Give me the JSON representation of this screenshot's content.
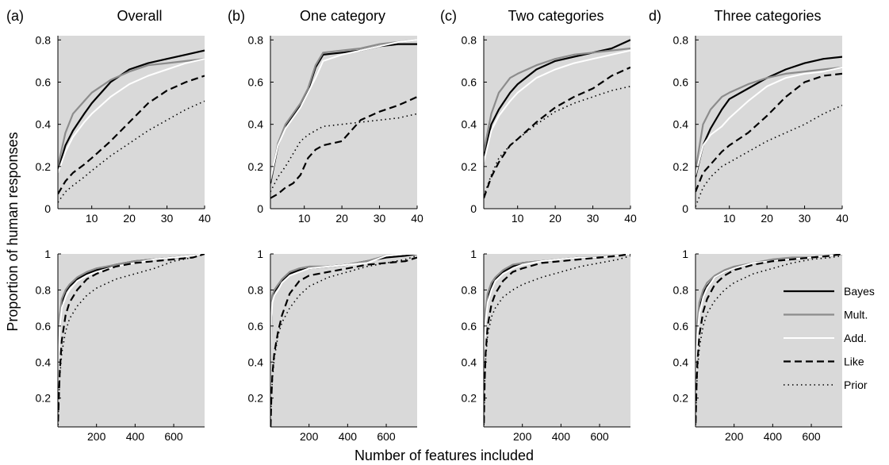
{
  "figure": {
    "ylabel": "Proportion of human responses",
    "xlabel": "Number of features included"
  },
  "panels": [
    {
      "letter": "(a)",
      "title": "Overall"
    },
    {
      "letter": "(b)",
      "title": "One category"
    },
    {
      "letter": "(c)",
      "title": "Two categories"
    },
    {
      "letter": "d)",
      "title": "Three categories"
    }
  ],
  "legend": [
    {
      "name": "Bayes",
      "color": "#000000",
      "dash": "solid",
      "width": 2.2
    },
    {
      "name": "Mult.",
      "color": "#8c8c8c",
      "dash": "solid",
      "width": 2.2
    },
    {
      "name": "Add.",
      "color": "#ffffff",
      "dash": "solid",
      "width": 2
    },
    {
      "name": "Like",
      "color": "#000000",
      "dash": "dashed",
      "width": 2.2
    },
    {
      "name": "Prior",
      "color": "#000000",
      "dash": "dotted",
      "width": 1.6
    }
  ],
  "chart_data": [
    {
      "type": "line",
      "panel": "(a) Overall",
      "row": "top",
      "xlim": [
        1,
        40
      ],
      "ylim": [
        0,
        0.82
      ],
      "xticks": [
        10,
        20,
        30,
        40
      ],
      "yticks": [
        0,
        0.2,
        0.4,
        0.6,
        0.8
      ],
      "xticklabels": [
        "10",
        "20",
        "30",
        "40"
      ],
      "yticklabels": [
        "0",
        "0.2",
        "0.4",
        "0.6",
        "0.8"
      ],
      "x": [
        1,
        3,
        5,
        8,
        10,
        15,
        20,
        25,
        30,
        35,
        40
      ],
      "series": [
        {
          "name": "Bayes",
          "values": [
            0.18,
            0.3,
            0.37,
            0.45,
            0.5,
            0.6,
            0.66,
            0.69,
            0.71,
            0.73,
            0.75
          ]
        },
        {
          "name": "Mult.",
          "values": [
            0.2,
            0.36,
            0.45,
            0.51,
            0.55,
            0.61,
            0.65,
            0.68,
            0.69,
            0.7,
            0.71
          ]
        },
        {
          "name": "Add.",
          "values": [
            0.17,
            0.27,
            0.34,
            0.41,
            0.45,
            0.53,
            0.59,
            0.63,
            0.66,
            0.69,
            0.71
          ]
        },
        {
          "name": "Like",
          "values": [
            0.07,
            0.13,
            0.17,
            0.21,
            0.24,
            0.32,
            0.41,
            0.5,
            0.56,
            0.6,
            0.63
          ]
        },
        {
          "name": "Prior",
          "values": [
            0.03,
            0.08,
            0.11,
            0.15,
            0.18,
            0.25,
            0.31,
            0.37,
            0.42,
            0.47,
            0.51
          ]
        }
      ]
    },
    {
      "type": "line",
      "panel": "(b) One category",
      "row": "top",
      "xlim": [
        1,
        40
      ],
      "ylim": [
        0,
        0.82
      ],
      "xticks": [
        10,
        20,
        30,
        40
      ],
      "yticks": [
        0,
        0.2,
        0.4,
        0.6,
        0.8
      ],
      "xticklabels": [
        "10",
        "20",
        "30",
        "40"
      ],
      "yticklabels": [
        "0",
        "0.2",
        "0.4",
        "0.6",
        "0.8"
      ],
      "x": [
        1,
        3,
        5,
        7,
        9,
        11,
        13,
        15,
        20,
        25,
        30,
        35,
        40
      ],
      "series": [
        {
          "name": "Bayes",
          "values": [
            0.12,
            0.3,
            0.39,
            0.44,
            0.49,
            0.56,
            0.67,
            0.73,
            0.74,
            0.75,
            0.77,
            0.78,
            0.78
          ]
        },
        {
          "name": "Mult.",
          "values": [
            0.13,
            0.31,
            0.4,
            0.45,
            0.5,
            0.57,
            0.68,
            0.74,
            0.75,
            0.76,
            0.78,
            0.79,
            0.8
          ]
        },
        {
          "name": "Add.",
          "values": [
            0.14,
            0.3,
            0.38,
            0.43,
            0.48,
            0.55,
            0.62,
            0.7,
            0.73,
            0.75,
            0.77,
            0.79,
            0.8
          ]
        },
        {
          "name": "Like",
          "values": [
            0.05,
            0.07,
            0.1,
            0.12,
            0.16,
            0.24,
            0.28,
            0.3,
            0.32,
            0.42,
            0.46,
            0.49,
            0.53
          ]
        },
        {
          "name": "Prior",
          "values": [
            0.08,
            0.15,
            0.2,
            0.26,
            0.32,
            0.35,
            0.37,
            0.39,
            0.4,
            0.41,
            0.42,
            0.43,
            0.45
          ]
        }
      ]
    },
    {
      "type": "line",
      "panel": "(c) Two categories",
      "row": "top",
      "xlim": [
        1,
        40
      ],
      "ylim": [
        0,
        0.82
      ],
      "xticks": [
        10,
        20,
        30,
        40
      ],
      "yticks": [
        0,
        0.2,
        0.4,
        0.6,
        0.8
      ],
      "xticklabels": [
        "10",
        "20",
        "30",
        "40"
      ],
      "yticklabels": [
        "0",
        "0.2",
        "0.4",
        "0.6",
        "0.8"
      ],
      "x": [
        1,
        3,
        5,
        8,
        10,
        15,
        20,
        25,
        30,
        35,
        40
      ],
      "series": [
        {
          "name": "Bayes",
          "values": [
            0.25,
            0.4,
            0.47,
            0.55,
            0.59,
            0.66,
            0.7,
            0.72,
            0.74,
            0.76,
            0.8
          ]
        },
        {
          "name": "Mult.",
          "values": [
            0.27,
            0.45,
            0.55,
            0.62,
            0.64,
            0.68,
            0.71,
            0.73,
            0.74,
            0.75,
            0.76
          ]
        },
        {
          "name": "Add.",
          "values": [
            0.22,
            0.37,
            0.44,
            0.51,
            0.55,
            0.62,
            0.66,
            0.69,
            0.71,
            0.73,
            0.75
          ]
        },
        {
          "name": "Like",
          "values": [
            0.05,
            0.15,
            0.22,
            0.3,
            0.33,
            0.41,
            0.48,
            0.53,
            0.57,
            0.63,
            0.67
          ]
        },
        {
          "name": "Prior",
          "values": [
            0.06,
            0.16,
            0.24,
            0.3,
            0.33,
            0.4,
            0.46,
            0.5,
            0.53,
            0.56,
            0.58
          ]
        }
      ]
    },
    {
      "type": "line",
      "panel": "d) Three categories",
      "row": "top",
      "xlim": [
        1,
        40
      ],
      "ylim": [
        0,
        0.82
      ],
      "xticks": [
        10,
        20,
        30,
        40
      ],
      "yticks": [
        0,
        0.2,
        0.4,
        0.6,
        0.8
      ],
      "xticklabels": [
        "10",
        "20",
        "30",
        "40"
      ],
      "yticklabels": [
        "0",
        "0.2",
        "0.4",
        "0.6",
        "0.8"
      ],
      "x": [
        1,
        3,
        5,
        8,
        10,
        15,
        20,
        25,
        30,
        35,
        40
      ],
      "series": [
        {
          "name": "Bayes",
          "values": [
            0.15,
            0.3,
            0.38,
            0.47,
            0.52,
            0.57,
            0.62,
            0.66,
            0.69,
            0.71,
            0.72
          ]
        },
        {
          "name": "Mult.",
          "values": [
            0.18,
            0.4,
            0.47,
            0.53,
            0.55,
            0.59,
            0.62,
            0.64,
            0.65,
            0.66,
            0.67
          ]
        },
        {
          "name": "Add.",
          "values": [
            0.16,
            0.3,
            0.35,
            0.39,
            0.43,
            0.51,
            0.58,
            0.62,
            0.64,
            0.65,
            0.67
          ]
        },
        {
          "name": "Like",
          "values": [
            0.08,
            0.17,
            0.21,
            0.27,
            0.3,
            0.36,
            0.44,
            0.53,
            0.6,
            0.63,
            0.64
          ]
        },
        {
          "name": "Prior",
          "values": [
            0.01,
            0.1,
            0.15,
            0.2,
            0.22,
            0.27,
            0.32,
            0.36,
            0.4,
            0.45,
            0.49
          ]
        }
      ]
    },
    {
      "type": "line",
      "panel": "(a) Overall",
      "row": "bottom",
      "xlim": [
        0,
        760
      ],
      "ylim": [
        0.04,
        1.0
      ],
      "xticks": [
        200,
        400,
        600
      ],
      "yticks": [
        0.2,
        0.4,
        0.6,
        0.8,
        1.0
      ],
      "xticklabels": [
        "200",
        "400",
        "600"
      ],
      "yticklabels": [
        "0.2",
        "0.4",
        "0.6",
        "0.8",
        "1"
      ],
      "x": [
        1,
        5,
        10,
        20,
        40,
        60,
        100,
        150,
        200,
        300,
        400,
        500,
        600,
        700,
        760
      ],
      "series": [
        {
          "name": "Bayes",
          "values": [
            0.2,
            0.5,
            0.63,
            0.73,
            0.79,
            0.82,
            0.86,
            0.89,
            0.91,
            0.94,
            0.96,
            0.97,
            0.98,
            0.99,
            1.0
          ]
        },
        {
          "name": "Mult.",
          "values": [
            0.24,
            0.55,
            0.66,
            0.75,
            0.8,
            0.83,
            0.87,
            0.9,
            0.92,
            0.94,
            0.96,
            0.97,
            0.98,
            0.99,
            1.0
          ]
        },
        {
          "name": "Add.",
          "values": [
            0.18,
            0.45,
            0.6,
            0.7,
            0.76,
            0.8,
            0.85,
            0.88,
            0.9,
            0.93,
            0.95,
            0.97,
            0.98,
            0.99,
            1.0
          ]
        },
        {
          "name": "Like",
          "values": [
            0.07,
            0.2,
            0.35,
            0.52,
            0.66,
            0.73,
            0.8,
            0.86,
            0.89,
            0.93,
            0.95,
            0.96,
            0.97,
            0.98,
            1.0
          ]
        },
        {
          "name": "Prior",
          "values": [
            0.05,
            0.2,
            0.32,
            0.45,
            0.57,
            0.64,
            0.71,
            0.77,
            0.81,
            0.86,
            0.89,
            0.92,
            0.96,
            0.98,
            1.0
          ]
        }
      ]
    },
    {
      "type": "line",
      "panel": "(b) One category",
      "row": "bottom",
      "xlim": [
        0,
        760
      ],
      "ylim": [
        0.04,
        1.0
      ],
      "xticks": [
        200,
        400,
        600
      ],
      "yticks": [
        0.2,
        0.4,
        0.6,
        0.8,
        1.0
      ],
      "xticklabels": [
        "200",
        "400",
        "600"
      ],
      "yticklabels": [
        "0.2",
        "0.4",
        "0.6",
        "0.8",
        "1"
      ],
      "x": [
        1,
        5,
        10,
        20,
        40,
        60,
        100,
        150,
        200,
        300,
        400,
        500,
        600,
        700,
        760
      ],
      "series": [
        {
          "name": "Bayes",
          "values": [
            0.12,
            0.7,
            0.76,
            0.79,
            0.82,
            0.85,
            0.89,
            0.91,
            0.92,
            0.93,
            0.94,
            0.96,
            0.98,
            0.99,
            1.0
          ]
        },
        {
          "name": "Mult.",
          "values": [
            0.14,
            0.72,
            0.77,
            0.8,
            0.83,
            0.86,
            0.9,
            0.92,
            0.93,
            0.93,
            0.94,
            0.96,
            0.99,
            1.0,
            1.0
          ]
        },
        {
          "name": "Add.",
          "values": [
            0.1,
            0.65,
            0.73,
            0.77,
            0.8,
            0.84,
            0.88,
            0.9,
            0.92,
            0.93,
            0.94,
            0.95,
            0.99,
            1.0,
            1.0
          ]
        },
        {
          "name": "Like",
          "values": [
            0.04,
            0.2,
            0.33,
            0.45,
            0.57,
            0.66,
            0.78,
            0.85,
            0.88,
            0.9,
            0.92,
            0.94,
            0.95,
            0.96,
            0.98
          ]
        },
        {
          "name": "Prior",
          "values": [
            0.03,
            0.2,
            0.3,
            0.42,
            0.55,
            0.62,
            0.7,
            0.77,
            0.82,
            0.87,
            0.9,
            0.93,
            0.95,
            0.97,
            0.99
          ]
        }
      ]
    },
    {
      "type": "line",
      "panel": "(c) Two categories",
      "row": "bottom",
      "xlim": [
        0,
        760
      ],
      "ylim": [
        0.04,
        1.0
      ],
      "xticks": [
        200,
        400,
        600
      ],
      "yticks": [
        0.2,
        0.4,
        0.6,
        0.8,
        1.0
      ],
      "xticklabels": [
        "200",
        "400",
        "600"
      ],
      "yticklabels": [
        "0.2",
        "0.4",
        "0.6",
        "0.8",
        "1"
      ],
      "x": [
        1,
        5,
        10,
        20,
        40,
        60,
        100,
        150,
        200,
        300,
        400,
        500,
        600,
        700,
        760
      ],
      "series": [
        {
          "name": "Bayes",
          "values": [
            0.25,
            0.55,
            0.66,
            0.76,
            0.82,
            0.86,
            0.9,
            0.93,
            0.95,
            0.96,
            0.97,
            0.98,
            0.98,
            0.99,
            1.0
          ]
        },
        {
          "name": "Mult.",
          "values": [
            0.27,
            0.58,
            0.69,
            0.78,
            0.84,
            0.87,
            0.91,
            0.94,
            0.95,
            0.96,
            0.97,
            0.98,
            0.98,
            0.99,
            1.0
          ]
        },
        {
          "name": "Add.",
          "values": [
            0.22,
            0.52,
            0.63,
            0.73,
            0.8,
            0.85,
            0.89,
            0.92,
            0.94,
            0.96,
            0.97,
            0.98,
            0.98,
            0.99,
            1.0
          ]
        },
        {
          "name": "Like",
          "values": [
            0.06,
            0.3,
            0.45,
            0.6,
            0.72,
            0.78,
            0.85,
            0.9,
            0.92,
            0.95,
            0.96,
            0.97,
            0.98,
            0.99,
            1.0
          ]
        },
        {
          "name": "Prior",
          "values": [
            0.05,
            0.28,
            0.42,
            0.55,
            0.65,
            0.7,
            0.76,
            0.8,
            0.83,
            0.87,
            0.9,
            0.93,
            0.95,
            0.97,
            0.99
          ]
        }
      ]
    },
    {
      "type": "line",
      "panel": "d) Three categories",
      "row": "bottom",
      "xlim": [
        0,
        760
      ],
      "ylim": [
        0.04,
        1.0
      ],
      "xticks": [
        200,
        400,
        600
      ],
      "yticks": [
        0.2,
        0.4,
        0.6,
        0.8,
        1.0
      ],
      "xticklabels": [
        "200",
        "400",
        "600"
      ],
      "yticklabels": [
        "0.2",
        "0.4",
        "0.6",
        "0.8",
        "1"
      ],
      "x": [
        1,
        5,
        10,
        20,
        40,
        60,
        100,
        150,
        200,
        300,
        400,
        500,
        600,
        700,
        760
      ],
      "series": [
        {
          "name": "Bayes",
          "values": [
            0.16,
            0.45,
            0.58,
            0.7,
            0.78,
            0.82,
            0.87,
            0.9,
            0.92,
            0.95,
            0.96,
            0.97,
            0.98,
            0.99,
            1.0
          ]
        },
        {
          "name": "Mult.",
          "values": [
            0.2,
            0.5,
            0.62,
            0.73,
            0.8,
            0.84,
            0.88,
            0.91,
            0.93,
            0.95,
            0.97,
            0.98,
            0.98,
            0.99,
            1.0
          ]
        },
        {
          "name": "Add.",
          "values": [
            0.15,
            0.42,
            0.55,
            0.67,
            0.76,
            0.81,
            0.87,
            0.9,
            0.92,
            0.95,
            0.96,
            0.97,
            0.98,
            0.99,
            1.0
          ]
        },
        {
          "name": "Like",
          "values": [
            0.06,
            0.25,
            0.4,
            0.55,
            0.68,
            0.75,
            0.83,
            0.88,
            0.91,
            0.94,
            0.96,
            0.97,
            0.98,
            0.99,
            1.0
          ]
        },
        {
          "name": "Prior",
          "values": [
            0.05,
            0.22,
            0.35,
            0.48,
            0.6,
            0.67,
            0.74,
            0.8,
            0.84,
            0.89,
            0.92,
            0.95,
            0.97,
            0.98,
            0.99
          ]
        }
      ]
    }
  ]
}
